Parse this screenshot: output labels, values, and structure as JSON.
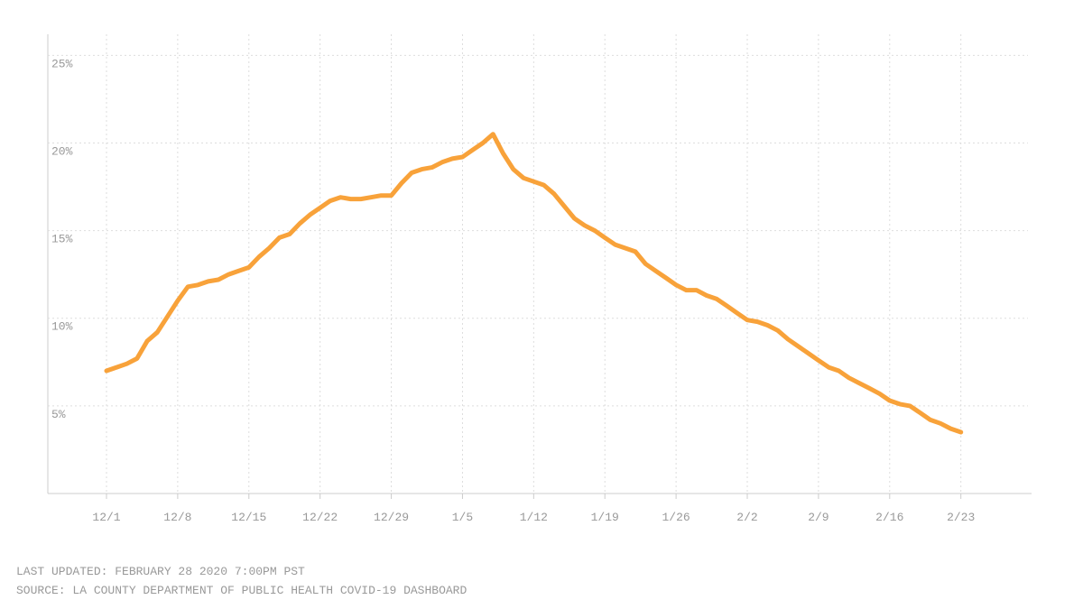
{
  "chart_data": {
    "type": "line",
    "x": [
      "12/1",
      "12/2",
      "12/3",
      "12/4",
      "12/5",
      "12/6",
      "12/7",
      "12/8",
      "12/9",
      "12/10",
      "12/11",
      "12/12",
      "12/13",
      "12/14",
      "12/15",
      "12/16",
      "12/17",
      "12/18",
      "12/19",
      "12/20",
      "12/21",
      "12/22",
      "12/23",
      "12/24",
      "12/25",
      "12/26",
      "12/27",
      "12/28",
      "12/29",
      "12/30",
      "12/31",
      "1/1",
      "1/2",
      "1/3",
      "1/4",
      "1/5",
      "1/6",
      "1/7",
      "1/8",
      "1/9",
      "1/10",
      "1/11",
      "1/12",
      "1/13",
      "1/14",
      "1/15",
      "1/16",
      "1/17",
      "1/18",
      "1/19",
      "1/20",
      "1/21",
      "1/22",
      "1/23",
      "1/24",
      "1/25",
      "1/26",
      "1/27",
      "1/28",
      "1/29",
      "1/30",
      "1/31",
      "2/1",
      "2/2",
      "2/3",
      "2/4",
      "2/5",
      "2/6",
      "2/7",
      "2/8",
      "2/9",
      "2/10",
      "2/11",
      "2/12",
      "2/13",
      "2/14",
      "2/15",
      "2/16",
      "2/17",
      "2/18",
      "2/19",
      "2/20",
      "2/21",
      "2/22",
      "2/23"
    ],
    "values": [
      7.0,
      7.2,
      7.4,
      7.7,
      8.7,
      9.2,
      10.1,
      11.0,
      11.8,
      11.9,
      12.1,
      12.2,
      12.5,
      12.7,
      12.9,
      13.5,
      14.0,
      14.6,
      14.8,
      15.4,
      15.9,
      16.3,
      16.7,
      16.9,
      16.8,
      16.8,
      16.9,
      17.0,
      17.0,
      17.7,
      18.3,
      18.5,
      18.6,
      18.9,
      19.1,
      19.2,
      19.6,
      20.0,
      20.5,
      19.4,
      18.5,
      18.0,
      17.8,
      17.6,
      17.1,
      16.4,
      15.7,
      15.3,
      15.0,
      14.6,
      14.2,
      14.0,
      13.8,
      13.1,
      12.7,
      12.3,
      11.9,
      11.6,
      11.6,
      11.3,
      11.1,
      10.7,
      10.3,
      9.9,
      9.8,
      9.6,
      9.3,
      8.8,
      8.4,
      8.0,
      7.6,
      7.2,
      7.0,
      6.6,
      6.3,
      6.0,
      5.7,
      5.3,
      5.1,
      5.0,
      4.6,
      4.2,
      4.0,
      3.7,
      3.5
    ],
    "color": "#f8a23a",
    "ylim": [
      0,
      26.2
    ],
    "yticks": [
      {
        "value": 5,
        "label": "5%"
      },
      {
        "value": 10,
        "label": "10%"
      },
      {
        "value": 15,
        "label": "15%"
      },
      {
        "value": 20,
        "label": "20%"
      },
      {
        "value": 25,
        "label": "25%"
      }
    ],
    "xticks": [
      "12/1",
      "12/8",
      "12/15",
      "12/22",
      "12/29",
      "1/5",
      "1/12",
      "1/19",
      "1/26",
      "2/2",
      "2/9",
      "2/16",
      "2/23"
    ],
    "grid": true,
    "footnotes": [
      "LAST UPDATED: FEBRUARY 28 2020 7:00PM PST",
      "SOURCE: LA COUNTY DEPARTMENT OF PUBLIC HEALTH COVID-19 DASHBOARD"
    ]
  }
}
